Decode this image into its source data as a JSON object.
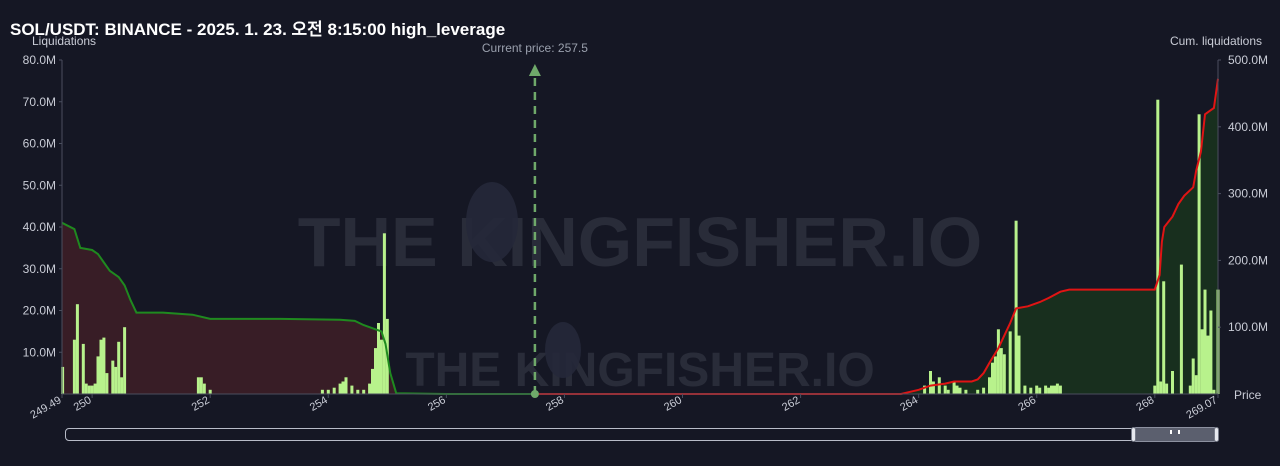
{
  "header": {
    "title": "SOL/USDT: BINANCE - 2025. 1. 23. 오전 8:15:00 high_leverage"
  },
  "watermark": "THE KINGFISHER.IO",
  "colors": {
    "background": "#151724",
    "bar": "#b8f28c",
    "short_cum_line": "#1f8a1f",
    "long_cum_line": "#e01414",
    "short_area": "#3a1e27",
    "long_area": "#18301f",
    "price_marker": "#6fa96a"
  },
  "chart_data": {
    "type": "bar",
    "title": "SOL/USDT: BINANCE - 2025. 1. 23. 오전 8:15:00 high_leverage",
    "ylabel": "Liquidations",
    "y2label": "Cum. liquidations",
    "xlabel": "Price",
    "xlim": [
      249.49,
      269.07
    ],
    "ylim": [
      0,
      80000000
    ],
    "y2lim": [
      0,
      500000000
    ],
    "y_ticks": [
      "80.0M",
      "70.0M",
      "60.0M",
      "50.0M",
      "40.0M",
      "30.0M",
      "20.0M",
      "10.0M"
    ],
    "y2_ticks": [
      "500.0M",
      "400.0M",
      "300.0M",
      "200.0M",
      "100.0M"
    ],
    "x_ticks": [
      "249.49",
      "250",
      "252",
      "254",
      "256",
      "258",
      "260",
      "262",
      "264",
      "266",
      "268",
      "269.07"
    ],
    "grid": false,
    "current_price": 257.5,
    "current_price_label": "Current price: 257.5",
    "bars": [
      [
        249.5,
        6.5
      ],
      [
        249.7,
        13.0
      ],
      [
        249.75,
        21.5
      ],
      [
        249.85,
        12.0
      ],
      [
        249.9,
        2.5
      ],
      [
        249.95,
        2.0
      ],
      [
        250.0,
        2.0
      ],
      [
        250.05,
        2.5
      ],
      [
        250.1,
        9.0
      ],
      [
        250.15,
        13.0
      ],
      [
        250.2,
        13.5
      ],
      [
        250.25,
        5.0
      ],
      [
        250.35,
        8.0
      ],
      [
        250.4,
        6.5
      ],
      [
        250.45,
        12.5
      ],
      [
        250.5,
        4.0
      ],
      [
        250.55,
        16.0
      ],
      [
        251.8,
        4.0
      ],
      [
        251.85,
        4.0
      ],
      [
        251.9,
        2.5
      ],
      [
        252.0,
        1.0
      ],
      [
        253.9,
        1.0
      ],
      [
        254.0,
        1.0
      ],
      [
        254.1,
        1.5
      ],
      [
        254.2,
        2.5
      ],
      [
        254.25,
        3.0
      ],
      [
        254.3,
        4.0
      ],
      [
        254.4,
        2.0
      ],
      [
        254.5,
        1.0
      ],
      [
        254.6,
        1.0
      ],
      [
        254.7,
        2.5
      ],
      [
        254.75,
        6.0
      ],
      [
        254.8,
        11.0
      ],
      [
        254.85,
        17.0
      ],
      [
        254.9,
        13.0
      ],
      [
        254.95,
        38.5
      ],
      [
        255.0,
        18.0
      ],
      [
        264.1,
        2.0
      ],
      [
        264.2,
        5.5
      ],
      [
        264.25,
        3.0
      ],
      [
        264.35,
        4.0
      ],
      [
        264.45,
        2.0
      ],
      [
        264.5,
        1.0
      ],
      [
        264.6,
        3.0
      ],
      [
        264.65,
        2.0
      ],
      [
        264.7,
        1.5
      ],
      [
        264.8,
        1.0
      ],
      [
        265.0,
        1.0
      ],
      [
        265.1,
        1.5
      ],
      [
        265.2,
        4.0
      ],
      [
        265.25,
        7.5
      ],
      [
        265.3,
        9.0
      ],
      [
        265.35,
        15.5
      ],
      [
        265.4,
        11.0
      ],
      [
        265.45,
        9.5
      ],
      [
        265.55,
        15.0
      ],
      [
        265.65,
        41.5
      ],
      [
        265.7,
        14.0
      ],
      [
        265.8,
        2.0
      ],
      [
        265.9,
        1.5
      ],
      [
        266.0,
        2.0
      ],
      [
        266.05,
        1.5
      ],
      [
        266.15,
        2.0
      ],
      [
        266.2,
        1.5
      ],
      [
        266.25,
        2.0
      ],
      [
        266.3,
        2.0
      ],
      [
        266.35,
        2.5
      ],
      [
        266.4,
        2.0
      ],
      [
        268.0,
        2.0
      ],
      [
        268.05,
        70.5
      ],
      [
        268.1,
        3.0
      ],
      [
        268.15,
        27.0
      ],
      [
        268.2,
        2.5
      ],
      [
        268.3,
        5.5
      ],
      [
        268.45,
        31.0
      ],
      [
        268.6,
        2.0
      ],
      [
        268.65,
        8.5
      ],
      [
        268.7,
        4.5
      ],
      [
        268.75,
        67.0
      ],
      [
        268.8,
        15.5
      ],
      [
        268.85,
        25.0
      ],
      [
        268.9,
        14.0
      ],
      [
        268.95,
        20.0
      ],
      [
        269.0,
        1.0
      ],
      [
        269.07,
        25.0
      ]
    ],
    "short_cum_line": [
      [
        249.49,
        41.0
      ],
      [
        249.7,
        39.5
      ],
      [
        249.8,
        35.0
      ],
      [
        250.0,
        34.5
      ],
      [
        250.1,
        33.5
      ],
      [
        250.2,
        31.5
      ],
      [
        250.3,
        29.5
      ],
      [
        250.45,
        28.0
      ],
      [
        250.55,
        26.0
      ],
      [
        250.65,
        22.5
      ],
      [
        250.75,
        19.5
      ],
      [
        251.2,
        19.5
      ],
      [
        251.7,
        19.0
      ],
      [
        252.0,
        18.0
      ],
      [
        253.2,
        18.0
      ],
      [
        254.2,
        17.8
      ],
      [
        254.45,
        17.5
      ],
      [
        254.6,
        16.5
      ],
      [
        254.8,
        15.5
      ],
      [
        254.9,
        15.0
      ],
      [
        254.97,
        12.0
      ],
      [
        255.05,
        5.0
      ],
      [
        255.15,
        0.2
      ],
      [
        256.0,
        0.0
      ],
      [
        257.5,
        0.0
      ]
    ],
    "long_cum_line": [
      [
        257.5,
        0.0
      ],
      [
        263.7,
        0.0
      ],
      [
        264.0,
        1.0
      ],
      [
        264.2,
        2.0
      ],
      [
        264.45,
        2.5
      ],
      [
        264.6,
        3.0
      ],
      [
        264.9,
        3.0
      ],
      [
        265.0,
        3.5
      ],
      [
        265.1,
        5.0
      ],
      [
        265.2,
        7.5
      ],
      [
        265.35,
        11.0
      ],
      [
        265.45,
        14.0
      ],
      [
        265.55,
        17.0
      ],
      [
        265.65,
        20.5
      ],
      [
        265.85,
        21.0
      ],
      [
        266.05,
        22.0
      ],
      [
        266.2,
        23.0
      ],
      [
        266.4,
        24.5
      ],
      [
        266.55,
        25.0
      ],
      [
        268.0,
        25.0
      ],
      [
        268.08,
        28.5
      ],
      [
        268.12,
        36.5
      ],
      [
        268.16,
        40.0
      ],
      [
        268.3,
        42.5
      ],
      [
        268.4,
        45.5
      ],
      [
        268.5,
        47.5
      ],
      [
        268.65,
        49.5
      ],
      [
        268.7,
        53.5
      ],
      [
        268.78,
        58.0
      ],
      [
        268.85,
        67.0
      ],
      [
        268.95,
        68.0
      ],
      [
        269.0,
        68.5
      ],
      [
        269.07,
        75.5
      ]
    ]
  }
}
